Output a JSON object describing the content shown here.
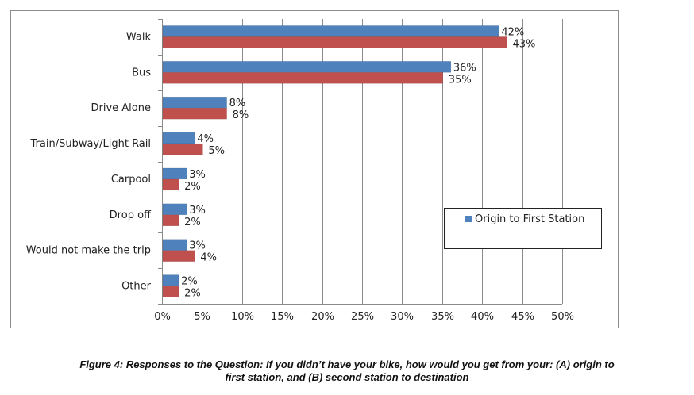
{
  "chart_data": {
    "type": "bar",
    "orientation": "horizontal",
    "categories": [
      "Walk",
      "Bus",
      "Drive Alone",
      "Train/Subway/Light Rail",
      "Carpool",
      "Drop off",
      "Would not make the trip",
      "Other"
    ],
    "series": [
      {
        "name": "Origin to First Station",
        "color": "#4F81BD",
        "values": [
          42,
          36,
          8,
          4,
          3,
          3,
          3,
          2
        ],
        "labels": [
          "42%",
          "36%",
          "8%",
          "4%",
          "3%",
          "3%",
          "3%",
          "2%"
        ]
      },
      {
        "color": "#C0504D",
        "values": [
          43,
          35,
          8,
          5,
          2,
          2,
          4,
          2
        ],
        "labels": [
          "43%",
          "35%",
          "8%",
          "5%",
          "2%",
          "2%",
          "4%",
          "2%"
        ]
      }
    ],
    "xlim": [
      0,
      50
    ],
    "x_ticks": [
      "0%",
      "5%",
      "10%",
      "15%",
      "20%",
      "25%",
      "30%",
      "35%",
      "40%",
      "45%",
      "50%"
    ],
    "grid": true,
    "legend_position": "right"
  },
  "caption": {
    "line1": "Figure 4: Responses to the Question: If you didn’t have your bike, how would you get from your: (A) origin to",
    "line2": "first station, and (B) second station to destination"
  }
}
